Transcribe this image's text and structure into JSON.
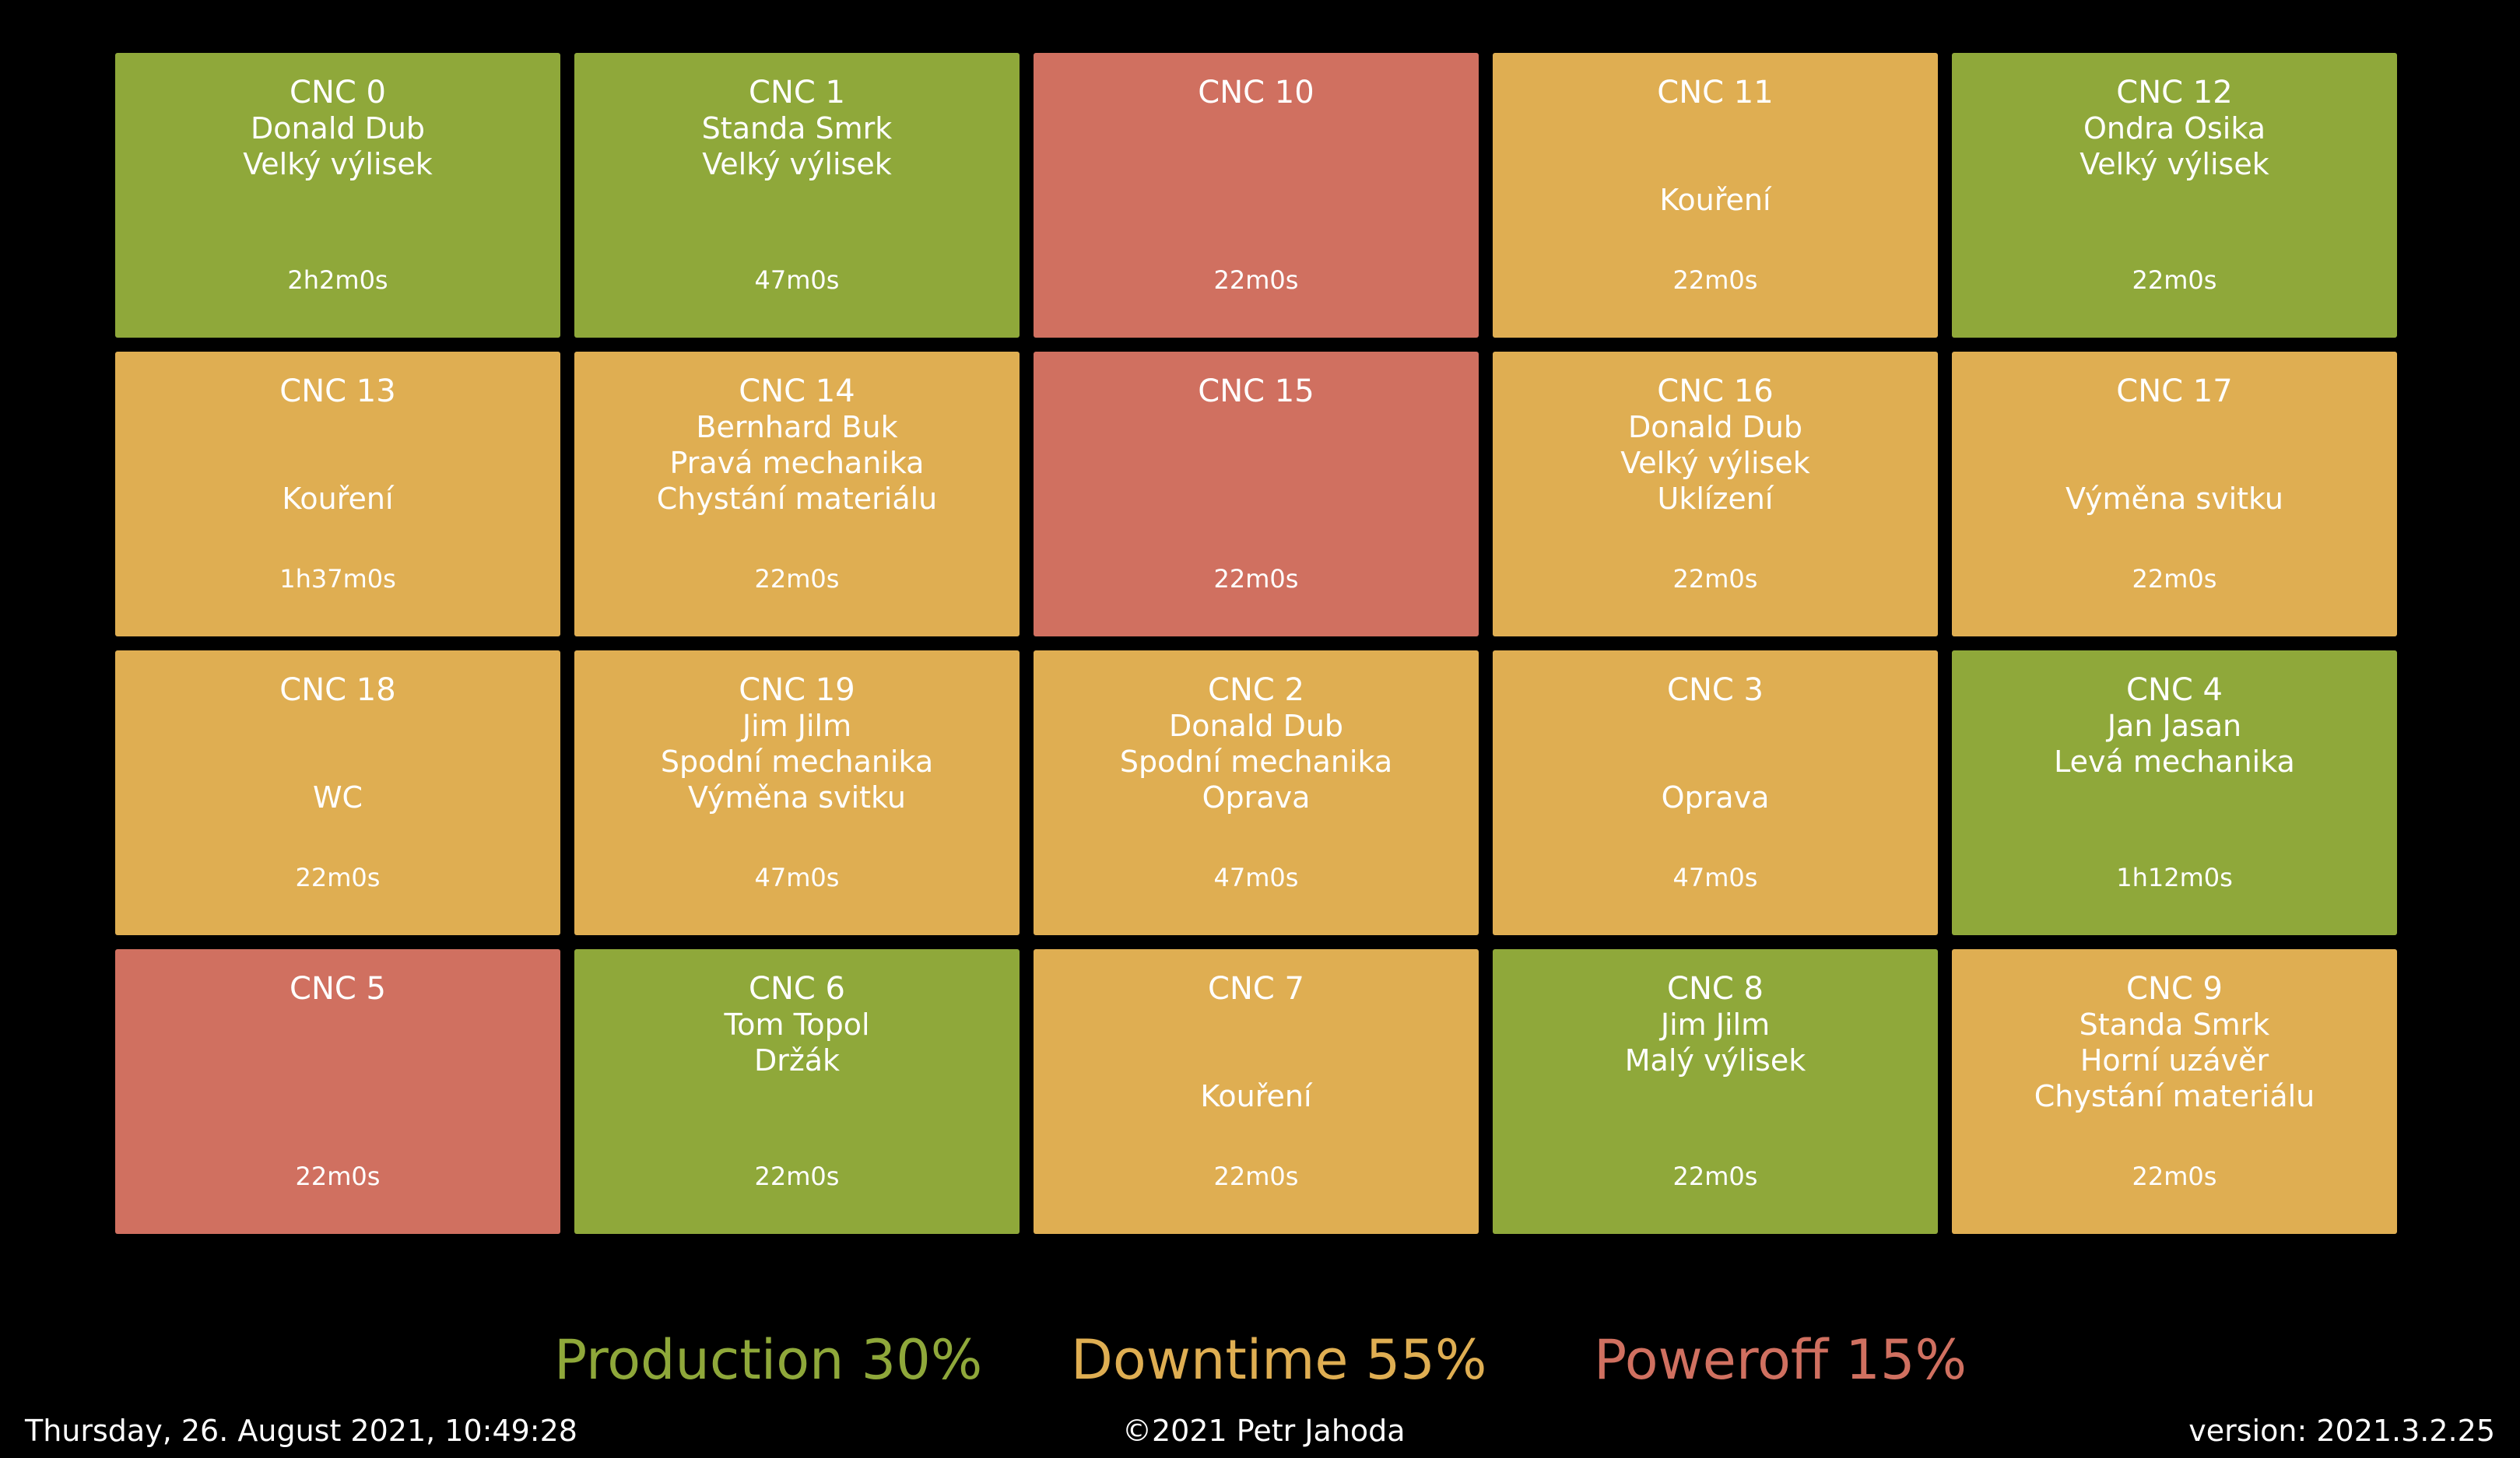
{
  "colors": {
    "production": "#8fa83a",
    "downtime": "#dfae52",
    "poweroff": "#d07060",
    "background": "#000000"
  },
  "machines": [
    {
      "name": "CNC 0",
      "status": "production",
      "lines": [
        "Donald Dub",
        "Velký výlisek",
        ""
      ],
      "time": "2h2m0s"
    },
    {
      "name": "CNC 1",
      "status": "production",
      "lines": [
        "Standa Smrk",
        "Velký výlisek",
        ""
      ],
      "time": "47m0s"
    },
    {
      "name": "CNC 10",
      "status": "poweroff",
      "lines": [
        "",
        "",
        ""
      ],
      "time": "22m0s"
    },
    {
      "name": "CNC 11",
      "status": "downtime",
      "lines": [
        "",
        "",
        "Kouření"
      ],
      "time": "22m0s"
    },
    {
      "name": "CNC 12",
      "status": "production",
      "lines": [
        "Ondra Osika",
        "Velký výlisek",
        ""
      ],
      "time": "22m0s"
    },
    {
      "name": "CNC 13",
      "status": "downtime",
      "lines": [
        "",
        "",
        "Kouření"
      ],
      "time": "1h37m0s"
    },
    {
      "name": "CNC 14",
      "status": "downtime",
      "lines": [
        "Bernhard Buk",
        "Pravá mechanika",
        "Chystání materiálu"
      ],
      "time": "22m0s"
    },
    {
      "name": "CNC 15",
      "status": "poweroff",
      "lines": [
        "",
        "",
        ""
      ],
      "time": "22m0s"
    },
    {
      "name": "CNC 16",
      "status": "downtime",
      "lines": [
        "Donald Dub",
        "Velký výlisek",
        "Uklízení"
      ],
      "time": "22m0s"
    },
    {
      "name": "CNC 17",
      "status": "downtime",
      "lines": [
        "",
        "",
        "Výměna svitku"
      ],
      "time": "22m0s"
    },
    {
      "name": "CNC 18",
      "status": "downtime",
      "lines": [
        "",
        "",
        "WC"
      ],
      "time": "22m0s"
    },
    {
      "name": "CNC 19",
      "status": "downtime",
      "lines": [
        "Jim Jilm",
        "Spodní mechanika",
        "Výměna svitku"
      ],
      "time": "47m0s"
    },
    {
      "name": "CNC 2",
      "status": "downtime",
      "lines": [
        "Donald Dub",
        "Spodní mechanika",
        "Oprava"
      ],
      "time": "47m0s"
    },
    {
      "name": "CNC 3",
      "status": "downtime",
      "lines": [
        "",
        "",
        "Oprava"
      ],
      "time": "47m0s"
    },
    {
      "name": "CNC 4",
      "status": "production",
      "lines": [
        "Jan Jasan",
        "Levá mechanika",
        ""
      ],
      "time": "1h12m0s"
    },
    {
      "name": "CNC 5",
      "status": "poweroff",
      "lines": [
        "",
        "",
        ""
      ],
      "time": "22m0s"
    },
    {
      "name": "CNC 6",
      "status": "production",
      "lines": [
        "Tom Topol",
        "Držák",
        ""
      ],
      "time": "22m0s"
    },
    {
      "name": "CNC 7",
      "status": "downtime",
      "lines": [
        "",
        "",
        "Kouření"
      ],
      "time": "22m0s"
    },
    {
      "name": "CNC 8",
      "status": "production",
      "lines": [
        "Jim Jilm",
        "Malý výlisek",
        ""
      ],
      "time": "22m0s"
    },
    {
      "name": "CNC 9",
      "status": "downtime",
      "lines": [
        "Standa Smrk",
        "Horní uzávěr",
        "Chystání materiálu"
      ],
      "time": "22m0s"
    }
  ],
  "stats": {
    "production": "Production 30%",
    "downtime": "Downtime 55%",
    "poweroff": "Poweroff 15%"
  },
  "footer": {
    "datetime": "Thursday, 26. August 2021, 10:49:28",
    "copyright": "©2021 Petr Jahoda",
    "version": "version: 2021.3.2.25"
  }
}
